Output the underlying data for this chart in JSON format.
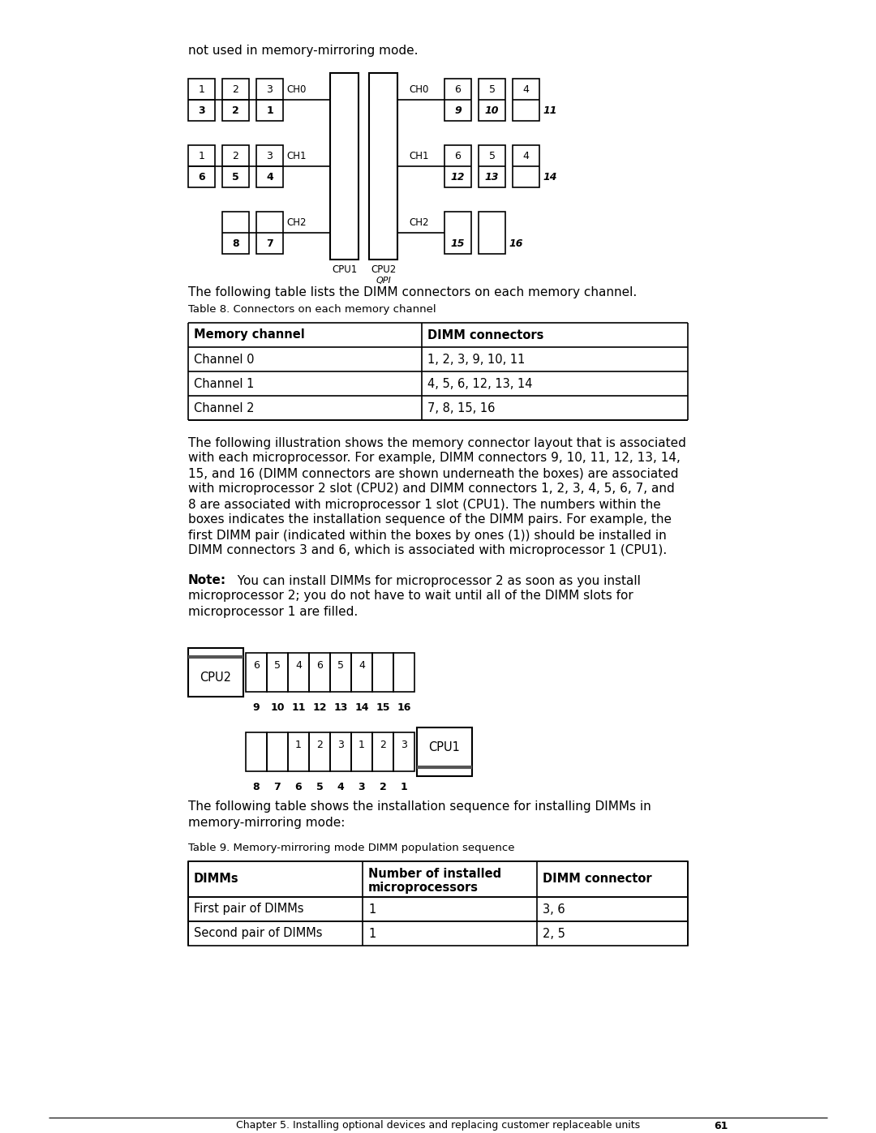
{
  "bg_color": "#ffffff",
  "intro_text": "not used in memory-mirroring mode.",
  "table8_caption": "Table 8. Connectors on each memory channel",
  "table8_headers": [
    "Memory channel",
    "DIMM connectors"
  ],
  "table8_rows": [
    [
      "Channel 0",
      "1, 2, 3, 9, 10, 11"
    ],
    [
      "Channel 1",
      "4, 5, 6, 12, 13, 14"
    ],
    [
      "Channel 2",
      "7, 8, 15, 16"
    ]
  ],
  "paragraph1": "The following table lists the DIMM connectors on each memory channel.",
  "p2_lines": [
    "The following illustration shows the memory connector layout that is associated",
    "with each microprocessor. For example, DIMM connectors 9, 10, 11, 12, 13, 14,",
    "15, and 16 (DIMM connectors are shown underneath the boxes) are associated",
    "with microprocessor 2 slot (CPU2) and DIMM connectors 1, 2, 3, 4, 5, 6, 7, and",
    "8 are associated with microprocessor 1 slot (CPU1). The numbers within the",
    "boxes indicates the installation sequence of the DIMM pairs. For example, the",
    "first DIMM pair (indicated within the boxes by ones (1)) should be installed in",
    "DIMM connectors 3 and 6, which is associated with microprocessor 1 (CPU1)."
  ],
  "note_line1": "  You can install DIMMs for microprocessor 2 as soon as you install",
  "note_line2": "microprocessor 2; you do not have to wait until all of the DIMM slots for",
  "note_line3": "microprocessor 1 are filled.",
  "p3_lines": [
    "The following table shows the installation sequence for installing DIMMs in",
    "memory-mirroring mode:"
  ],
  "table9_caption": "Table 9. Memory-mirroring mode DIMM population sequence",
  "table9_headers": [
    "DIMMs",
    "Number of installed",
    "microprocessors",
    "DIMM connector"
  ],
  "table9_rows": [
    [
      "First pair of DIMMs",
      "1",
      "3, 6"
    ],
    [
      "Second pair of DIMMs",
      "1",
      "2, 5"
    ]
  ],
  "footer_text": "Chapter 5. Installing optional devices and replacing customer replaceable units",
  "footer_page": "61"
}
